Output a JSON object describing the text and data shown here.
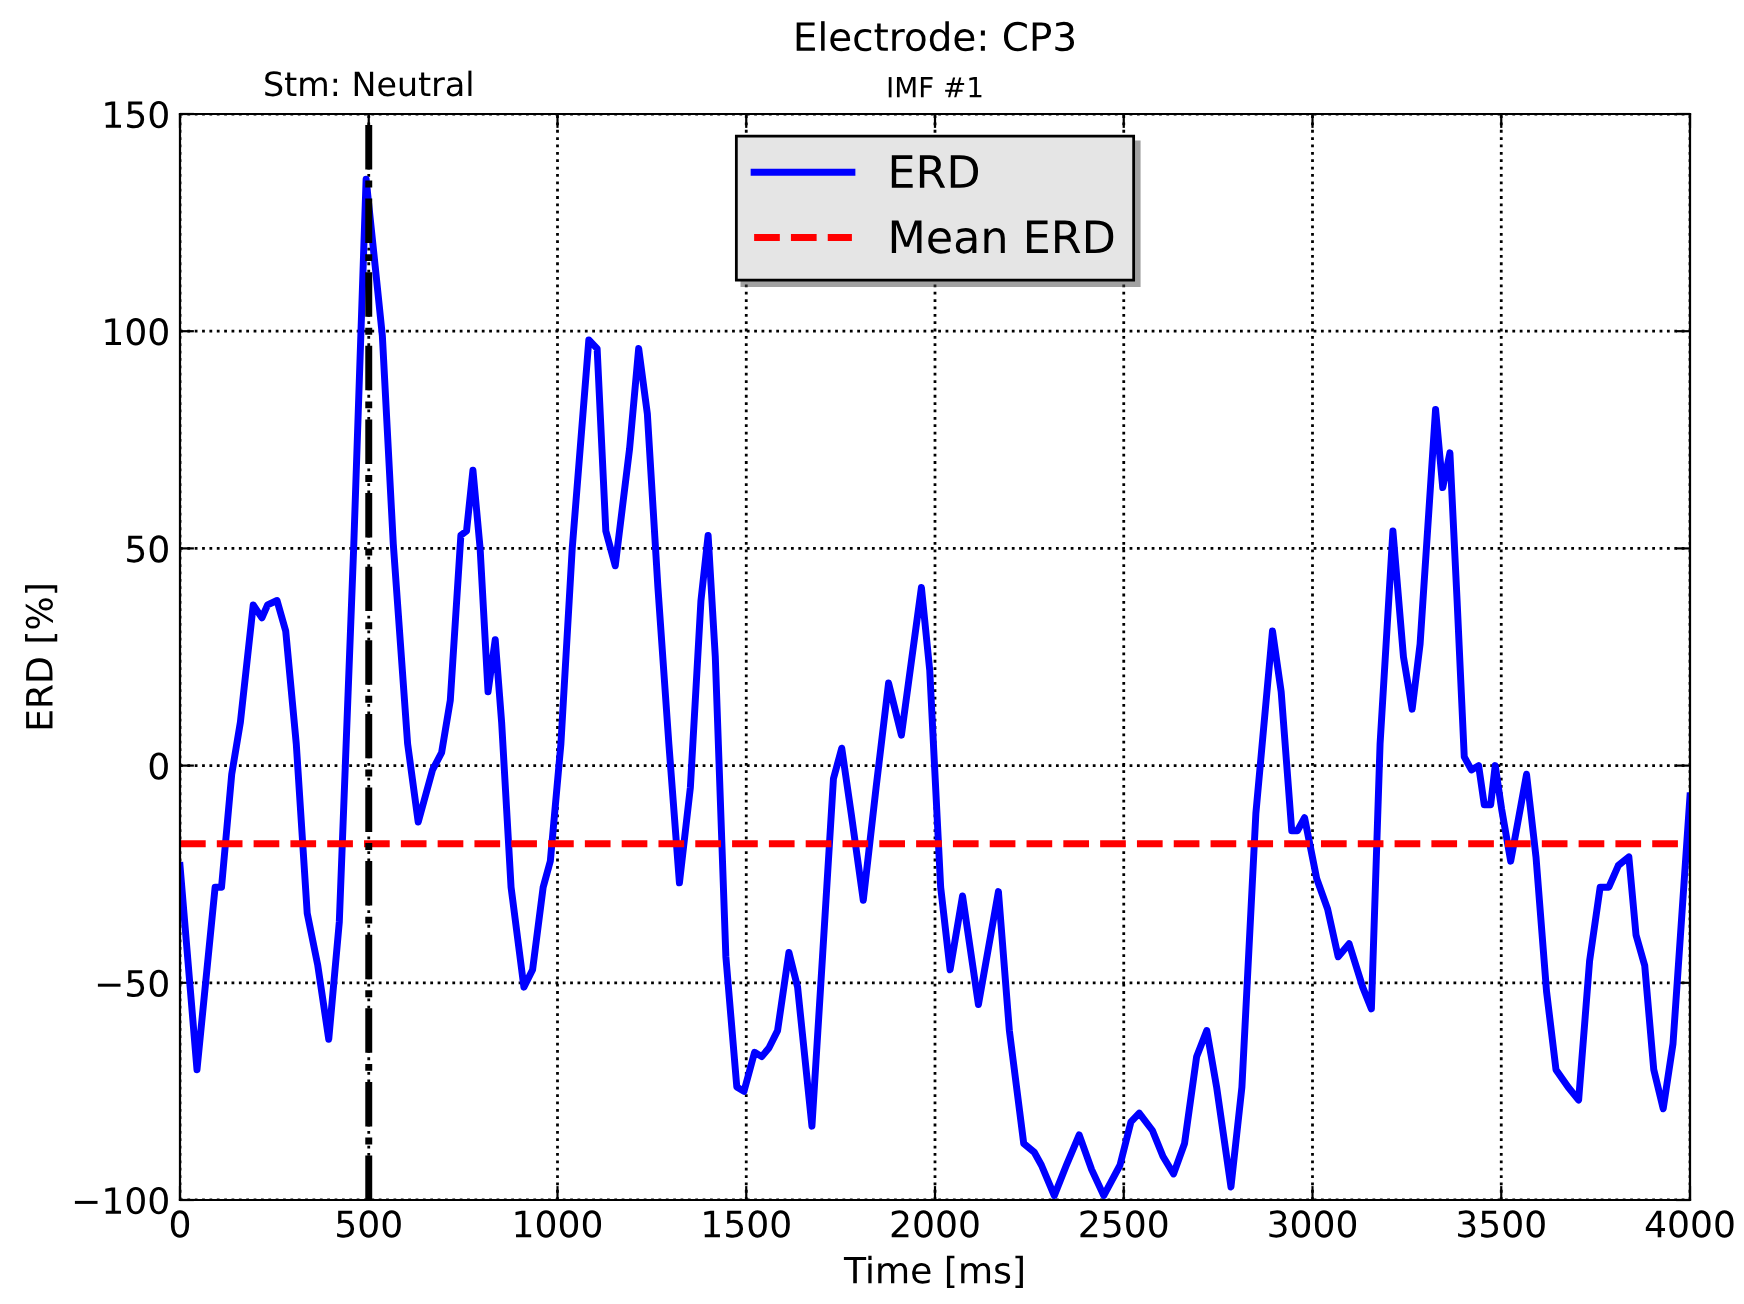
{
  "chart_data": {
    "type": "line",
    "title": "Electrode: CP3",
    "subtitle": "IMF #1",
    "xlabel": "Time [ms]",
    "ylabel": "ERD [%]",
    "xlim": [
      0,
      4000
    ],
    "xticks": [
      0,
      500,
      1000,
      1500,
      2000,
      2500,
      3000,
      3500,
      4000
    ],
    "ylim": [
      -100,
      150
    ],
    "yticks": [
      {
        "value": -100,
        "label": "−100"
      },
      {
        "value": -50,
        "label": "−50"
      },
      0,
      50,
      100,
      150
    ],
    "grid": true,
    "legend": "top",
    "marker": "none",
    "ref_lines": [
      {
        "axis": "x",
        "value": 500,
        "label": "Stm: Neutral",
        "color": "#000000",
        "line_style": "dashdot"
      }
    ],
    "series": [
      {
        "name": "ERD",
        "color": "#0000ff",
        "line_style": "solid",
        "x": [
          0,
          45,
          93,
          110,
          137,
          160,
          194,
          217,
          232,
          257,
          280,
          308,
          337,
          365,
          394,
          422,
          460,
          493,
          517,
          536,
          565,
          603,
          631,
          669,
          693,
          716,
          744,
          759,
          776,
          795,
          816,
          835,
          852,
          877,
          911,
          934,
          962,
          981,
          1009,
          1039,
          1083,
          1105,
          1128,
          1153,
          1191,
          1215,
          1238,
          1266,
          1295,
          1323,
          1352,
          1380,
          1399,
          1418,
          1446,
          1475,
          1494,
          1522,
          1541,
          1560,
          1583,
          1613,
          1636,
          1674,
          1702,
          1731,
          1753,
          1778,
          1810,
          1844,
          1877,
          1911,
          1939,
          1964,
          1986,
          2015,
          2040,
          2073,
          2115,
          2168,
          2197,
          2235,
          2263,
          2282,
          2316,
          2348,
          2382,
          2415,
          2447,
          2490,
          2519,
          2541,
          2576,
          2604,
          2632,
          2661,
          2693,
          2720,
          2746,
          2784,
          2813,
          2850,
          2894,
          2917,
          2945,
          2960,
          2979,
          3011,
          3040,
          3068,
          3097,
          3133,
          3156,
          3179,
          3213,
          3241,
          3264,
          3285,
          3326,
          3345,
          3364,
          3383,
          3402,
          3421,
          3440,
          3455,
          3472,
          3484,
          3501,
          3525,
          3544,
          3567,
          3592,
          3620,
          3645,
          3677,
          3705,
          3734,
          3762,
          3785,
          3810,
          3838,
          3857,
          3880,
          3904,
          3929,
          3955,
          4000
        ],
        "values": [
          -23,
          -70,
          -28,
          -28,
          -2,
          10,
          37,
          34,
          37,
          38,
          31,
          5,
          -34,
          -46,
          -63,
          -36,
          50,
          135,
          115,
          99,
          51,
          5,
          -13,
          -1,
          3,
          15,
          53,
          54,
          68,
          50,
          17,
          29,
          10,
          -28,
          -51,
          -47,
          -28,
          -22,
          5,
          50,
          98,
          96,
          54,
          46,
          73,
          96,
          81,
          41,
          5,
          -27,
          -5,
          38,
          53,
          25,
          -44,
          -74,
          -75,
          -66,
          -67,
          -65,
          -61,
          -43,
          -51,
          -83,
          -44,
          -3,
          4,
          -11,
          -31,
          -5,
          19,
          7,
          25,
          41,
          22,
          -28,
          -47,
          -30,
          -55,
          -29,
          -61,
          -87,
          -89,
          -92,
          -99,
          -92,
          -85,
          -93,
          -99,
          -92,
          -82,
          -80,
          -84,
          -90,
          -94,
          -87,
          -67,
          -61,
          -74,
          -97,
          -74,
          -11,
          31,
          17,
          -15,
          -15,
          -12,
          -26,
          -33,
          -44,
          -41,
          -51,
          -56,
          5,
          54,
          25,
          13,
          28,
          82,
          64,
          72,
          38,
          2,
          -1,
          0,
          -9,
          -9,
          0,
          -10,
          -22,
          -13,
          -2,
          -21,
          -52,
          -70,
          -74,
          -77,
          -45,
          -28,
          -28,
          -23,
          -21,
          -39,
          -46,
          -70,
          -79,
          -64,
          -7
        ]
      },
      {
        "name": "Mean ERD",
        "color": "#ff0000",
        "line_style": "dashed",
        "x": [
          0,
          4000
        ],
        "values": [
          -18,
          -18
        ]
      }
    ]
  }
}
